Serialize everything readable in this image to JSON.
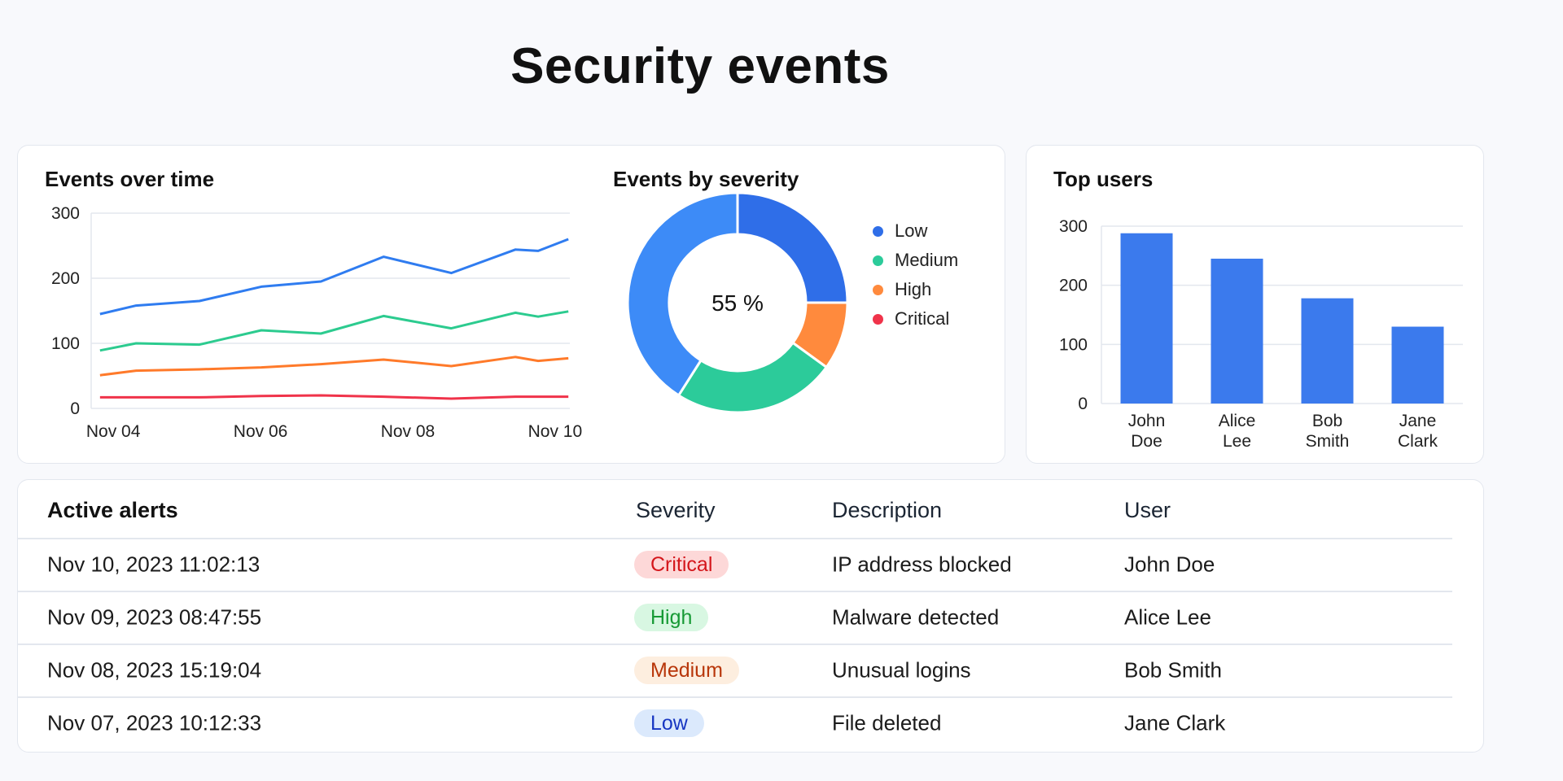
{
  "page": {
    "title": "Security events"
  },
  "colors": {
    "low": "#2f6ee8",
    "medium": "#2ccb9a",
    "high": "#ff8a3d",
    "critical": "#f0334a",
    "other": "#3d8bf7",
    "bar": "#3b7aed"
  },
  "chart_data": [
    {
      "type": "line",
      "title": "Events over time",
      "xlabel": "",
      "ylabel": "",
      "ylim": [
        0,
        300
      ],
      "xlim": [
        -0.3,
        6.2
      ],
      "yticks": [
        "300",
        "200",
        "100",
        "0"
      ],
      "ytick_values": [
        300,
        200,
        100,
        0
      ],
      "xticks": [
        "Nov 04",
        "Nov 06",
        "Nov 08",
        "Nov 10"
      ],
      "xtick_values": [
        0,
        2,
        4,
        6
      ],
      "x": [
        -0.18,
        0.31,
        1.17,
        2.01,
        2.82,
        3.67,
        4.59,
        5.46,
        5.77,
        6.18
      ],
      "series": [
        {
          "name": "Low",
          "color": "#2f7cf0",
          "values": [
            145,
            158,
            165,
            187,
            195,
            233,
            208,
            244,
            242,
            260
          ]
        },
        {
          "name": "Medium",
          "color": "#2ccb8f",
          "values": [
            89,
            100,
            98,
            120,
            115,
            142,
            123,
            147,
            141,
            149
          ]
        },
        {
          "name": "High",
          "color": "#ff7a2a",
          "values": [
            51,
            58,
            60,
            63,
            68,
            75,
            65,
            79,
            73,
            77
          ]
        },
        {
          "name": "Critical",
          "color": "#f0334a",
          "values": [
            17,
            17,
            17,
            19,
            20,
            18,
            15,
            18,
            18,
            18
          ]
        }
      ],
      "grid": true
    },
    {
      "type": "pie",
      "title": "Events by severity",
      "center_label": "55 %",
      "slices": [
        {
          "key": "low",
          "value": 25
        },
        {
          "key": "high",
          "value": 10
        },
        {
          "key": "medium",
          "value": 24
        },
        {
          "key": "other",
          "value": 41
        }
      ],
      "legend": [
        {
          "label": "Low",
          "key": "low"
        },
        {
          "label": "Medium",
          "key": "medium"
        },
        {
          "label": "High",
          "key": "high"
        },
        {
          "label": "Critical",
          "key": "critical"
        }
      ],
      "legend_placement": "right"
    },
    {
      "type": "bar",
      "title": "Top users",
      "categories": [
        [
          "John",
          "Doe"
        ],
        [
          "Alice",
          "Lee"
        ],
        [
          "Bob",
          "Smith"
        ],
        [
          "Jane",
          "Clark"
        ]
      ],
      "values": [
        288,
        245,
        178,
        130
      ],
      "ylim": [
        0,
        300
      ],
      "yticks": [
        "300",
        "200",
        "100",
        "0"
      ],
      "ytick_values": [
        300,
        200,
        100,
        0
      ],
      "grid": true
    }
  ],
  "alerts": {
    "title": "Active alerts",
    "headers": {
      "severity": "Severity",
      "description": "Description",
      "user": "User"
    },
    "rows": [
      {
        "time": "Nov 10, 2023 11:02:13",
        "severity": "Critical",
        "sev_key": "critical",
        "description": "IP address blocked",
        "user": "John Doe"
      },
      {
        "time": "Nov 09, 2023 08:47:55",
        "severity": "High",
        "sev_key": "high",
        "description": "Malware detected",
        "user": "Alice Lee"
      },
      {
        "time": "Nov 08, 2023 15:19:04",
        "severity": "Medium",
        "sev_key": "medium",
        "description": "Unusual logins",
        "user": "Bob Smith"
      },
      {
        "time": "Nov 07, 2023 10:12:33",
        "severity": "Low",
        "sev_key": "low",
        "description": "File deleted",
        "user": "Jane Clark"
      }
    ],
    "badge_colors": {
      "critical": {
        "bg": "#fdd8d8",
        "fg": "#d4161b"
      },
      "high": {
        "bg": "#d8f7e2",
        "fg": "#179a35"
      },
      "medium": {
        "bg": "#fdeedf",
        "fg": "#b8360a"
      },
      "low": {
        "bg": "#dbe9fc",
        "fg": "#1736c2"
      }
    }
  }
}
